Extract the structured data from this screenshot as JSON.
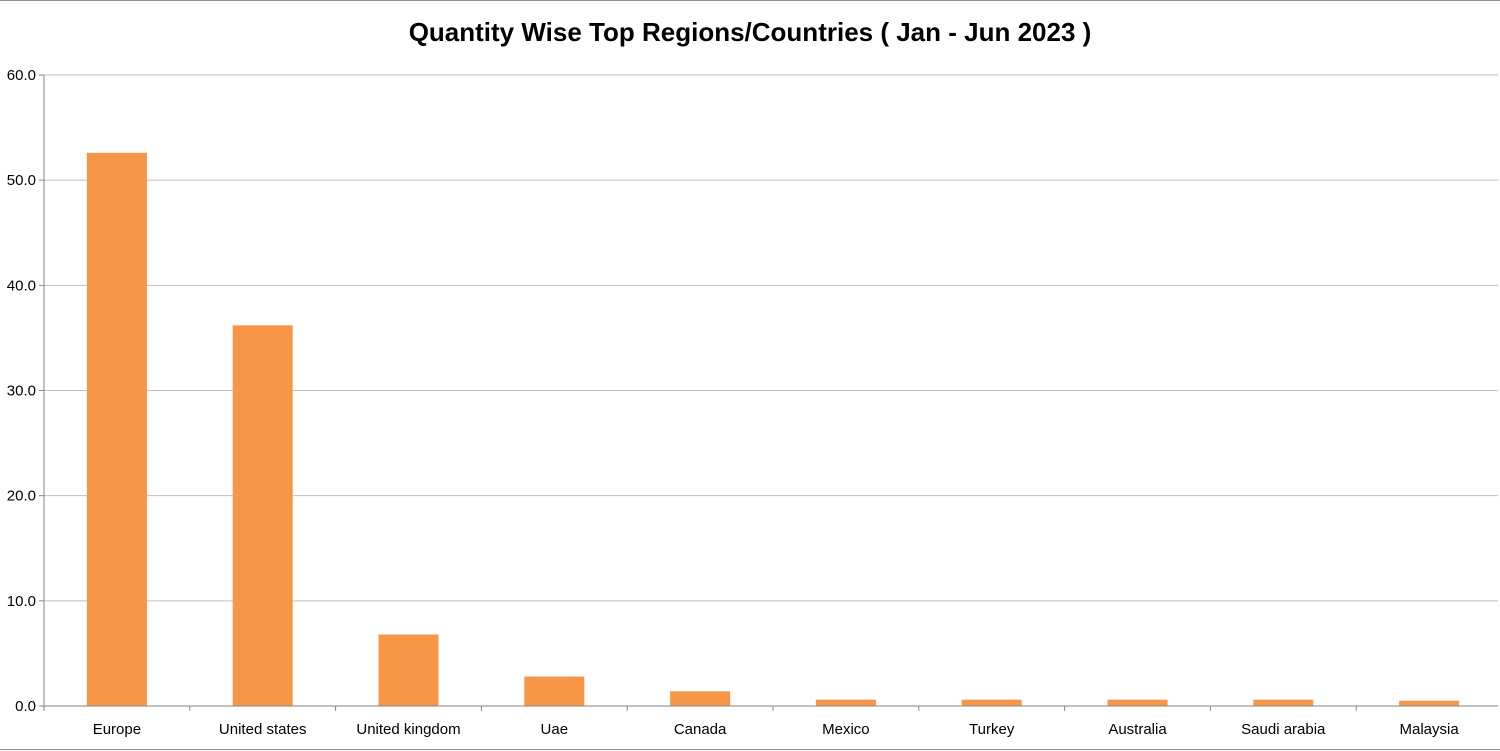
{
  "chart_data": {
    "type": "bar",
    "title": "Quantity Wise Top Regions/Countries ( Jan - Jun 2023 )",
    "xlabel": "",
    "ylabel": "",
    "categories": [
      "Europe",
      "United states",
      "United kingdom",
      "Uae",
      "Canada",
      "Mexico",
      "Turkey",
      "Australia",
      "Saudi arabia",
      "Malaysia"
    ],
    "values": [
      52.6,
      36.2,
      6.8,
      2.8,
      1.4,
      0.6,
      0.6,
      0.6,
      0.6,
      0.5
    ],
    "ylim": [
      0,
      60
    ],
    "yticks": [
      0,
      10,
      20,
      30,
      40,
      50,
      60
    ],
    "ytick_labels": [
      "0.0",
      "10.0",
      "20.0",
      "30.0",
      "40.0",
      "50.0",
      "60.0"
    ],
    "grid": true,
    "legend": "none",
    "bar_color": "#F79646",
    "grid_color": "#BFBFBF"
  }
}
